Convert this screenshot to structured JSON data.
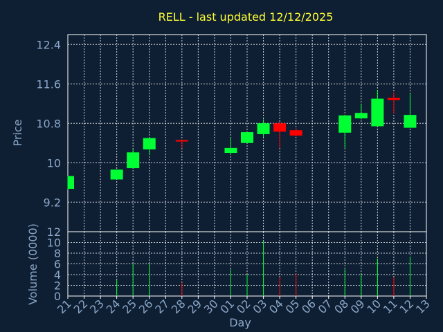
{
  "title": "RELL - last updated 12/12/2025",
  "chart_data": {
    "type": "candlestick",
    "title": "RELL - last updated 12/12/2025",
    "xlabel": "Day",
    "price_ylabel": "Price",
    "volume_ylabel": "Volume (0000)",
    "x_ticks": [
      "21",
      "22",
      "23",
      "24",
      "25",
      "26",
      "27",
      "28",
      "29",
      "30",
      "01",
      "02",
      "03",
      "04",
      "05",
      "06",
      "07",
      "08",
      "09",
      "10",
      "11",
      "12",
      "13"
    ],
    "price_ylim": [
      8.6,
      12.6
    ],
    "price_yticks": [
      "9.2",
      "10",
      "10.8",
      "11.6",
      "12.4"
    ],
    "volume_ylim": [
      0,
      12
    ],
    "volume_yticks": [
      "0",
      "2",
      "4",
      "6",
      "8",
      "10",
      "12"
    ],
    "up_color": "#00ff33",
    "down_color": "#ff0000",
    "candles": [
      {
        "day": "21",
        "open": 9.47,
        "high": 9.73,
        "low": 9.46,
        "close": 9.73,
        "volume": 0
      },
      {
        "day": "24",
        "open": 9.66,
        "high": 9.86,
        "low": 9.66,
        "close": 9.86,
        "volume": 3.0
      },
      {
        "day": "25",
        "open": 9.89,
        "high": 10.28,
        "low": 9.89,
        "close": 10.21,
        "volume": 6.0
      },
      {
        "day": "26",
        "open": 10.27,
        "high": 10.5,
        "low": 10.16,
        "close": 10.5,
        "volume": 6.0
      },
      {
        "day": "28",
        "open": 10.46,
        "high": 10.46,
        "low": 10.3,
        "close": 10.43,
        "volume": 2.5
      },
      {
        "day": "01",
        "open": 10.2,
        "high": 10.5,
        "low": 10.16,
        "close": 10.3,
        "volume": 5.0
      },
      {
        "day": "02",
        "open": 10.4,
        "high": 10.62,
        "low": 10.4,
        "close": 10.62,
        "volume": 4.0
      },
      {
        "day": "03",
        "open": 10.58,
        "high": 10.88,
        "low": 10.52,
        "close": 10.8,
        "volume": 10.3
      },
      {
        "day": "04",
        "open": 10.8,
        "high": 10.83,
        "low": 10.3,
        "close": 10.63,
        "volume": 3.5
      },
      {
        "day": "05",
        "open": 10.66,
        "high": 10.7,
        "low": 10.53,
        "close": 10.55,
        "volume": 4.2
      },
      {
        "day": "08",
        "open": 10.61,
        "high": 10.96,
        "low": 10.3,
        "close": 10.96,
        "volume": 5.0
      },
      {
        "day": "09",
        "open": 10.9,
        "high": 11.2,
        "low": 10.88,
        "close": 11.01,
        "volume": 4.0
      },
      {
        "day": "10",
        "open": 10.74,
        "high": 11.47,
        "low": 10.74,
        "close": 11.3,
        "volume": 7.0
      },
      {
        "day": "11",
        "open": 11.3,
        "high": 11.42,
        "low": 11.0,
        "close": 11.29,
        "volume": 3.5
      },
      {
        "day": "12",
        "open": 10.71,
        "high": 11.4,
        "low": 10.71,
        "close": 10.97,
        "volume": 7.3
      }
    ]
  }
}
